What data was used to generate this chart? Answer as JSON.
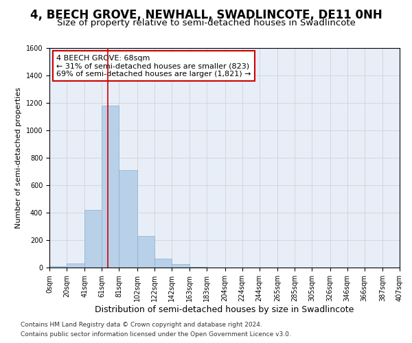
{
  "title": "4, BEECH GROVE, NEWHALL, SWADLINCOTE, DE11 0NH",
  "subtitle": "Size of property relative to semi-detached houses in Swadlincote",
  "xlabel": "Distribution of semi-detached houses by size in Swadlincote",
  "ylabel": "Number of semi-detached properties",
  "footnote1": "Contains HM Land Registry data © Crown copyright and database right 2024.",
  "footnote2": "Contains public sector information licensed under the Open Government Licence v3.0.",
  "property_size": 68,
  "property_label": "4 BEECH GROVE: 68sqm",
  "pct_smaller": 31,
  "count_smaller": 823,
  "pct_larger": 69,
  "count_larger": 1821,
  "bin_edges": [
    0,
    20,
    41,
    61,
    81,
    102,
    122,
    142,
    163,
    183,
    204,
    224,
    244,
    265,
    285,
    305,
    326,
    346,
    366,
    387,
    407
  ],
  "bin_labels": [
    "0sqm",
    "20sqm",
    "41sqm",
    "61sqm",
    "81sqm",
    "102sqm",
    "122sqm",
    "142sqm",
    "163sqm",
    "183sqm",
    "204sqm",
    "224sqm",
    "244sqm",
    "265sqm",
    "285sqm",
    "305sqm",
    "326sqm",
    "346sqm",
    "366sqm",
    "387sqm",
    "407sqm"
  ],
  "counts": [
    10,
    30,
    420,
    1180,
    710,
    230,
    65,
    25,
    5,
    0,
    0,
    0,
    0,
    0,
    0,
    0,
    0,
    0,
    0,
    0
  ],
  "bar_color": "#b8d0e8",
  "bar_edgecolor": "#8ab0d0",
  "vline_color": "#cc0000",
  "annotation_box_color": "#cc0000",
  "ylim": [
    0,
    1600
  ],
  "yticks": [
    0,
    200,
    400,
    600,
    800,
    1000,
    1200,
    1400,
    1600
  ],
  "grid_color": "#cccccc",
  "background_color": "#e8eef8",
  "title_fontsize": 12,
  "subtitle_fontsize": 9.5,
  "xlabel_fontsize": 9,
  "ylabel_fontsize": 8,
  "tick_fontsize": 7,
  "annotation_fontsize": 8,
  "footnote_fontsize": 6.5
}
